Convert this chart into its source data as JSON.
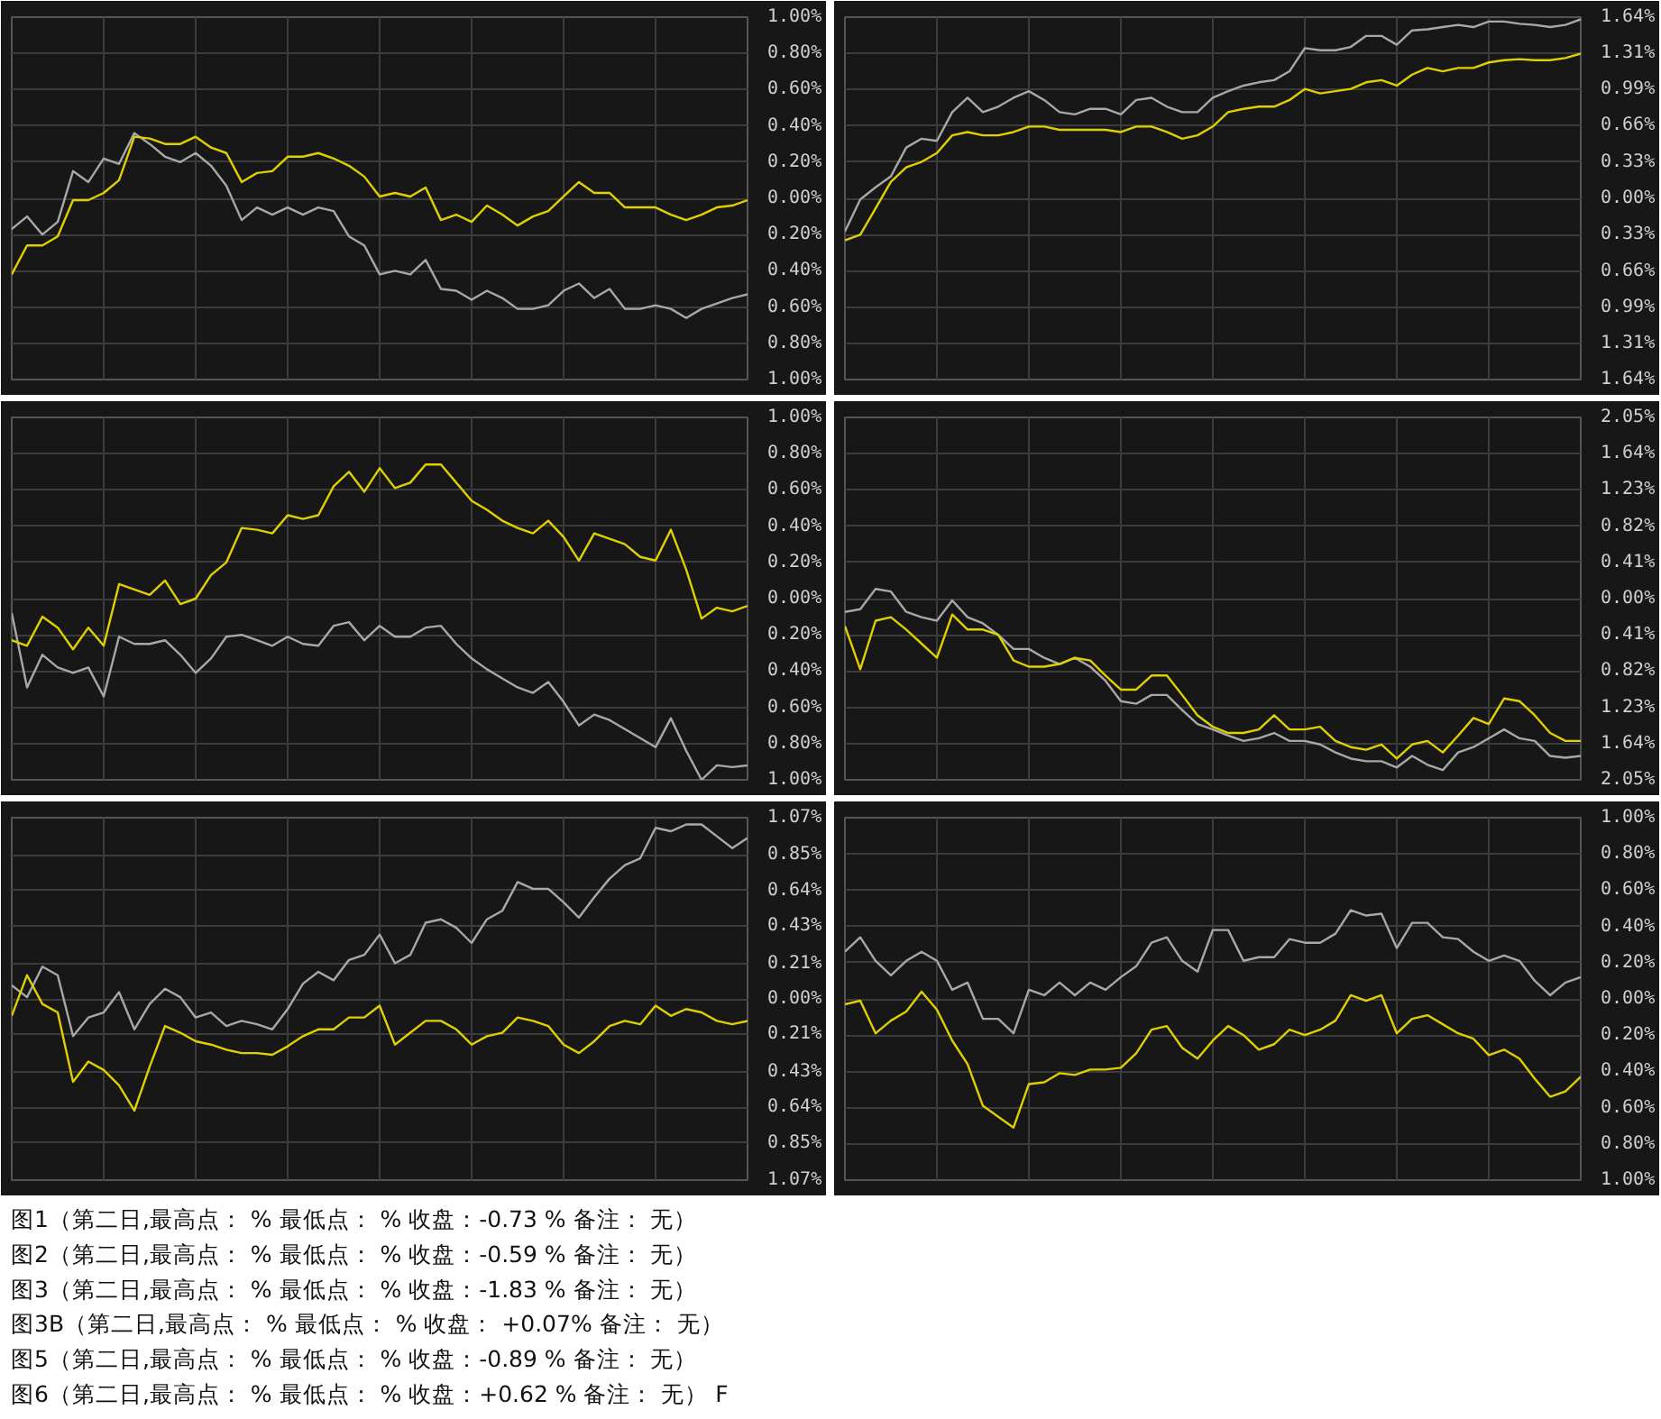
{
  "chart_data": [
    {
      "type": "line",
      "tick_labels": "y",
      "grid": true,
      "ylim": [
        -1,
        1
      ],
      "yticks": [
        {
          "value": 1,
          "label": "1.00%"
        },
        {
          "value": 0.8,
          "label": "0.80%"
        },
        {
          "value": 0.6,
          "label": "0.60%"
        },
        {
          "value": 0.4,
          "label": "0.40%"
        },
        {
          "value": 0.2,
          "label": "0.20%"
        },
        {
          "value": 0,
          "label": "0.00%"
        },
        {
          "value": -0.2,
          "label": "0.20%"
        },
        {
          "value": -0.4,
          "label": "0.40%"
        },
        {
          "value": -0.6,
          "label": "0.60%"
        },
        {
          "value": -0.8,
          "label": "0.80%"
        },
        {
          "value": -1,
          "label": "1.00%"
        }
      ],
      "categories": [
        null,
        null,
        null,
        null,
        null,
        null,
        null,
        null,
        null,
        null,
        null,
        null,
        null,
        null,
        null,
        null,
        null,
        null,
        null,
        null,
        null,
        null,
        null,
        null,
        null,
        null,
        null,
        null,
        null,
        null,
        null,
        null,
        null,
        null,
        null,
        null,
        null,
        null,
        null,
        null,
        null,
        null,
        null,
        null,
        null,
        null,
        null,
        null,
        null
      ],
      "series": [
        {
          "color": "#a8a8a8",
          "values": [
            -0.17,
            -0.1,
            -0.2,
            -0.13,
            0.15,
            0.09,
            0.22,
            0.19,
            0.36,
            0.3,
            0.23,
            0.2,
            0.25,
            0.18,
            0.07,
            -0.12,
            -0.05,
            -0.09,
            -0.05,
            -0.09,
            -0.05,
            -0.07,
            -0.21,
            -0.26,
            -0.42,
            -0.4,
            -0.42,
            -0.34,
            -0.5,
            -0.51,
            -0.56,
            -0.51,
            -0.55,
            -0.61,
            -0.61,
            -0.59,
            -0.51,
            -0.47,
            -0.55,
            -0.5,
            -0.61,
            -0.61,
            -0.59,
            -0.61,
            -0.66,
            -0.61,
            -0.58,
            -0.55,
            -0.53
          ]
        },
        {
          "color": "#e0d000",
          "values": [
            -0.42,
            -0.26,
            -0.26,
            -0.21,
            -0.01,
            -0.01,
            0.03,
            0.1,
            0.34,
            0.33,
            0.3,
            0.3,
            0.34,
            0.28,
            0.25,
            0.09,
            0.14,
            0.15,
            0.23,
            0.23,
            0.25,
            0.22,
            0.18,
            0.12,
            0.01,
            0.03,
            0.01,
            0.06,
            -0.12,
            -0.09,
            -0.13,
            -0.04,
            -0.09,
            -0.15,
            -0.1,
            -0.07,
            0.01,
            0.09,
            0.03,
            0.03,
            -0.05,
            -0.05,
            -0.05,
            -0.09,
            -0.12,
            -0.09,
            -0.05,
            -0.04,
            -0.01
          ]
        }
      ]
    },
    {
      "type": "line",
      "tick_labels": "y",
      "grid": true,
      "ylim": [
        -1.64,
        1.64
      ],
      "yticks": [
        {
          "value": 1.64,
          "label": "1.64%"
        },
        {
          "value": 1.31,
          "label": "1.31%"
        },
        {
          "value": 0.99,
          "label": "0.99%"
        },
        {
          "value": 0.66,
          "label": "0.66%"
        },
        {
          "value": 0.33,
          "label": "0.33%"
        },
        {
          "value": 0,
          "label": "0.00%"
        },
        {
          "value": -0.33,
          "label": "0.33%"
        },
        {
          "value": -0.66,
          "label": "0.66%"
        },
        {
          "value": -0.99,
          "label": "0.99%"
        },
        {
          "value": -1.31,
          "label": "1.31%"
        },
        {
          "value": -1.64,
          "label": "1.64%"
        }
      ],
      "categories": [
        null,
        null,
        null,
        null,
        null,
        null,
        null,
        null,
        null,
        null,
        null,
        null,
        null,
        null,
        null,
        null,
        null,
        null,
        null,
        null,
        null,
        null,
        null,
        null,
        null,
        null,
        null,
        null,
        null,
        null,
        null,
        null,
        null,
        null,
        null,
        null,
        null,
        null,
        null,
        null,
        null,
        null,
        null,
        null,
        null,
        null,
        null,
        null,
        null
      ],
      "series": [
        {
          "color": "#a8a8a8",
          "values": [
            -0.3,
            -0.01,
            0.1,
            0.2,
            0.46,
            0.54,
            0.52,
            0.78,
            0.91,
            0.78,
            0.83,
            0.91,
            0.97,
            0.89,
            0.78,
            0.76,
            0.81,
            0.81,
            0.76,
            0.89,
            0.91,
            0.83,
            0.78,
            0.78,
            0.91,
            0.97,
            1.02,
            1.05,
            1.07,
            1.15,
            1.36,
            1.34,
            1.34,
            1.37,
            1.47,
            1.47,
            1.39,
            1.52,
            1.53,
            1.55,
            1.57,
            1.55,
            1.6,
            1.6,
            1.58,
            1.57,
            1.55,
            1.57,
            1.62
          ]
        },
        {
          "color": "#e0d000",
          "values": [
            -0.38,
            -0.33,
            -0.09,
            0.15,
            0.28,
            0.33,
            0.41,
            0.57,
            0.6,
            0.57,
            0.57,
            0.6,
            0.65,
            0.65,
            0.62,
            0.62,
            0.62,
            0.62,
            0.6,
            0.65,
            0.65,
            0.6,
            0.54,
            0.57,
            0.65,
            0.78,
            0.81,
            0.83,
            0.83,
            0.89,
            0.99,
            0.95,
            0.97,
            0.99,
            1.05,
            1.07,
            1.02,
            1.12,
            1.18,
            1.15,
            1.18,
            1.18,
            1.23,
            1.25,
            1.26,
            1.25,
            1.25,
            1.27,
            1.31
          ]
        }
      ]
    },
    {
      "type": "line",
      "tick_labels": "y",
      "grid": true,
      "ylim": [
        -1,
        1
      ],
      "yticks": [
        {
          "value": 1,
          "label": "1.00%"
        },
        {
          "value": 0.8,
          "label": "0.80%"
        },
        {
          "value": 0.6,
          "label": "0.60%"
        },
        {
          "value": 0.4,
          "label": "0.40%"
        },
        {
          "value": 0.2,
          "label": "0.20%"
        },
        {
          "value": 0,
          "label": "0.00%"
        },
        {
          "value": -0.2,
          "label": "0.20%"
        },
        {
          "value": -0.4,
          "label": "0.40%"
        },
        {
          "value": -0.6,
          "label": "0.60%"
        },
        {
          "value": -0.8,
          "label": "0.80%"
        },
        {
          "value": -1,
          "label": "1.00%"
        }
      ],
      "categories": [
        null,
        null,
        null,
        null,
        null,
        null,
        null,
        null,
        null,
        null,
        null,
        null,
        null,
        null,
        null,
        null,
        null,
        null,
        null,
        null,
        null,
        null,
        null,
        null,
        null,
        null,
        null,
        null,
        null,
        null,
        null,
        null,
        null,
        null,
        null,
        null,
        null,
        null,
        null,
        null,
        null,
        null,
        null,
        null,
        null,
        null,
        null,
        null,
        null
      ],
      "series": [
        {
          "color": "#a8a8a8",
          "values": [
            -0.08,
            -0.49,
            -0.31,
            -0.38,
            -0.41,
            -0.38,
            -0.54,
            -0.21,
            -0.25,
            -0.25,
            -0.23,
            -0.31,
            -0.41,
            -0.33,
            -0.21,
            -0.2,
            -0.23,
            -0.26,
            -0.21,
            -0.25,
            -0.26,
            -0.15,
            -0.13,
            -0.23,
            -0.15,
            -0.21,
            -0.21,
            -0.16,
            -0.15,
            -0.25,
            -0.33,
            -0.39,
            -0.44,
            -0.49,
            -0.52,
            -0.46,
            -0.57,
            -0.7,
            -0.64,
            -0.67,
            -0.72,
            -0.77,
            -0.82,
            -0.66,
            -0.84,
            -1.0,
            -0.92,
            -0.93,
            -0.92
          ]
        },
        {
          "color": "#e0d000",
          "values": [
            -0.23,
            -0.26,
            -0.1,
            -0.16,
            -0.28,
            -0.16,
            -0.26,
            0.08,
            0.05,
            0.02,
            0.1,
            -0.03,
            0.0,
            0.13,
            0.2,
            0.39,
            0.38,
            0.36,
            0.46,
            0.44,
            0.46,
            0.62,
            0.7,
            0.59,
            0.72,
            0.61,
            0.64,
            0.74,
            0.74,
            0.64,
            0.54,
            0.49,
            0.43,
            0.39,
            0.36,
            0.43,
            0.34,
            0.21,
            0.36,
            0.33,
            0.3,
            0.23,
            0.21,
            0.38,
            0.16,
            -0.11,
            -0.05,
            -0.07,
            -0.04
          ]
        }
      ]
    },
    {
      "type": "line",
      "tick_labels": "y",
      "grid": true,
      "ylim": [
        -2.05,
        2.05
      ],
      "yticks": [
        {
          "value": 2.05,
          "label": "2.05%"
        },
        {
          "value": 1.64,
          "label": "1.64%"
        },
        {
          "value": 1.23,
          "label": "1.23%"
        },
        {
          "value": 0.82,
          "label": "0.82%"
        },
        {
          "value": 0.41,
          "label": "0.41%"
        },
        {
          "value": 0,
          "label": "0.00%"
        },
        {
          "value": -0.41,
          "label": "0.41%"
        },
        {
          "value": -0.82,
          "label": "0.82%"
        },
        {
          "value": -1.23,
          "label": "1.23%"
        },
        {
          "value": -1.64,
          "label": "1.64%"
        },
        {
          "value": -2.05,
          "label": "2.05%"
        }
      ],
      "categories": [
        null,
        null,
        null,
        null,
        null,
        null,
        null,
        null,
        null,
        null,
        null,
        null,
        null,
        null,
        null,
        null,
        null,
        null,
        null,
        null,
        null,
        null,
        null,
        null,
        null,
        null,
        null,
        null,
        null,
        null,
        null,
        null,
        null,
        null,
        null,
        null,
        null,
        null,
        null,
        null,
        null,
        null,
        null,
        null,
        null,
        null,
        null,
        null,
        null
      ],
      "series": [
        {
          "color": "#a8a8a8",
          "values": [
            -0.15,
            -0.12,
            0.11,
            0.08,
            -0.15,
            -0.21,
            -0.25,
            -0.02,
            -0.21,
            -0.28,
            -0.41,
            -0.57,
            -0.57,
            -0.67,
            -0.74,
            -0.67,
            -0.77,
            -0.93,
            -1.16,
            -1.19,
            -1.09,
            -1.09,
            -1.26,
            -1.42,
            -1.48,
            -1.55,
            -1.61,
            -1.58,
            -1.52,
            -1.61,
            -1.61,
            -1.65,
            -1.74,
            -1.81,
            -1.84,
            -1.84,
            -1.91,
            -1.78,
            -1.88,
            -1.94,
            -1.74,
            -1.68,
            -1.58,
            -1.48,
            -1.58,
            -1.61,
            -1.78,
            -1.8,
            -1.78
          ]
        },
        {
          "color": "#e0d000",
          "values": [
            -0.31,
            -0.8,
            -0.25,
            -0.21,
            -0.35,
            -0.51,
            -0.67,
            -0.18,
            -0.35,
            -0.35,
            -0.41,
            -0.7,
            -0.77,
            -0.77,
            -0.74,
            -0.67,
            -0.7,
            -0.87,
            -1.03,
            -1.03,
            -0.87,
            -0.87,
            -1.09,
            -1.32,
            -1.45,
            -1.52,
            -1.52,
            -1.48,
            -1.32,
            -1.48,
            -1.48,
            -1.45,
            -1.61,
            -1.68,
            -1.71,
            -1.65,
            -1.81,
            -1.65,
            -1.61,
            -1.74,
            -1.55,
            -1.35,
            -1.42,
            -1.13,
            -1.16,
            -1.32,
            -1.52,
            -1.61,
            -1.61
          ]
        }
      ]
    },
    {
      "type": "line",
      "tick_labels": "y",
      "grid": true,
      "ylim": [
        -1.07,
        1.07
      ],
      "yticks": [
        {
          "value": 1.07,
          "label": "1.07%"
        },
        {
          "value": 0.85,
          "label": "0.85%"
        },
        {
          "value": 0.64,
          "label": "0.64%"
        },
        {
          "value": 0.43,
          "label": "0.43%"
        },
        {
          "value": 0.21,
          "label": "0.21%"
        },
        {
          "value": 0,
          "label": "0.00%"
        },
        {
          "value": -0.21,
          "label": "0.21%"
        },
        {
          "value": -0.43,
          "label": "0.43%"
        },
        {
          "value": -0.64,
          "label": "0.64%"
        },
        {
          "value": -0.85,
          "label": "0.85%"
        },
        {
          "value": -1.07,
          "label": "1.07%"
        }
      ],
      "categories": [
        null,
        null,
        null,
        null,
        null,
        null,
        null,
        null,
        null,
        null,
        null,
        null,
        null,
        null,
        null,
        null,
        null,
        null,
        null,
        null,
        null,
        null,
        null,
        null,
        null,
        null,
        null,
        null,
        null,
        null,
        null,
        null,
        null,
        null,
        null,
        null,
        null,
        null,
        null,
        null,
        null,
        null,
        null,
        null,
        null,
        null,
        null,
        null,
        null
      ],
      "series": [
        {
          "color": "#a8a8a8",
          "values": [
            0.08,
            0.01,
            0.19,
            0.14,
            -0.22,
            -0.11,
            -0.08,
            0.04,
            -0.18,
            -0.03,
            0.06,
            0.01,
            -0.11,
            -0.08,
            -0.16,
            -0.13,
            -0.15,
            -0.18,
            -0.06,
            0.09,
            0.16,
            0.11,
            0.23,
            0.26,
            0.38,
            0.21,
            0.26,
            0.45,
            0.47,
            0.42,
            0.33,
            0.47,
            0.52,
            0.69,
            0.65,
            0.65,
            0.57,
            0.48,
            0.6,
            0.71,
            0.79,
            0.83,
            1.01,
            0.99,
            1.03,
            1.03,
            0.96,
            0.89,
            0.95
          ]
        },
        {
          "color": "#e0d000",
          "values": [
            -0.1,
            0.14,
            -0.03,
            -0.08,
            -0.49,
            -0.37,
            -0.42,
            -0.51,
            -0.66,
            -0.4,
            -0.16,
            -0.2,
            -0.25,
            -0.27,
            -0.3,
            -0.32,
            -0.32,
            -0.33,
            -0.28,
            -0.22,
            -0.18,
            -0.18,
            -0.11,
            -0.11,
            -0.04,
            -0.27,
            -0.2,
            -0.13,
            -0.13,
            -0.18,
            -0.27,
            -0.22,
            -0.2,
            -0.11,
            -0.13,
            -0.16,
            -0.27,
            -0.32,
            -0.25,
            -0.16,
            -0.13,
            -0.15,
            -0.04,
            -0.1,
            -0.06,
            -0.08,
            -0.13,
            -0.15,
            -0.13
          ]
        }
      ]
    },
    {
      "type": "line",
      "tick_labels": "y",
      "grid": true,
      "ylim": [
        -1,
        1
      ],
      "yticks": [
        {
          "value": 1,
          "label": "1.00%"
        },
        {
          "value": 0.8,
          "label": "0.80%"
        },
        {
          "value": 0.6,
          "label": "0.60%"
        },
        {
          "value": 0.4,
          "label": "0.40%"
        },
        {
          "value": 0.2,
          "label": "0.20%"
        },
        {
          "value": 0,
          "label": "0.00%"
        },
        {
          "value": -0.2,
          "label": "0.20%"
        },
        {
          "value": -0.4,
          "label": "0.40%"
        },
        {
          "value": -0.6,
          "label": "0.60%"
        },
        {
          "value": -0.8,
          "label": "0.80%"
        },
        {
          "value": -1,
          "label": "1.00%"
        }
      ],
      "categories": [
        null,
        null,
        null,
        null,
        null,
        null,
        null,
        null,
        null,
        null,
        null,
        null,
        null,
        null,
        null,
        null,
        null,
        null,
        null,
        null,
        null,
        null,
        null,
        null,
        null,
        null,
        null,
        null,
        null,
        null,
        null,
        null,
        null,
        null,
        null,
        null,
        null,
        null,
        null,
        null,
        null,
        null,
        null,
        null,
        null,
        null,
        null,
        null,
        null
      ],
      "series": [
        {
          "color": "#a8a8a8",
          "values": [
            0.26,
            0.34,
            0.21,
            0.13,
            0.21,
            0.26,
            0.21,
            0.05,
            0.09,
            -0.11,
            -0.11,
            -0.19,
            0.05,
            0.02,
            0.09,
            0.02,
            0.09,
            0.05,
            0.12,
            0.18,
            0.31,
            0.34,
            0.21,
            0.15,
            0.38,
            0.38,
            0.21,
            0.23,
            0.23,
            0.33,
            0.31,
            0.31,
            0.36,
            0.49,
            0.46,
            0.47,
            0.28,
            0.42,
            0.42,
            0.34,
            0.33,
            0.26,
            0.21,
            0.24,
            0.21,
            0.1,
            0.02,
            0.09,
            0.12
          ]
        },
        {
          "color": "#e0d000",
          "values": [
            -0.03,
            -0.01,
            -0.19,
            -0.12,
            -0.07,
            0.04,
            -0.06,
            -0.23,
            -0.36,
            -0.59,
            -0.65,
            -0.71,
            -0.47,
            -0.46,
            -0.41,
            -0.42,
            -0.39,
            -0.39,
            -0.38,
            -0.3,
            -0.17,
            -0.15,
            -0.27,
            -0.33,
            -0.23,
            -0.15,
            -0.2,
            -0.28,
            -0.25,
            -0.17,
            -0.2,
            -0.17,
            -0.12,
            0.02,
            -0.01,
            0.02,
            -0.19,
            -0.11,
            -0.09,
            -0.14,
            -0.19,
            -0.22,
            -0.31,
            -0.28,
            -0.33,
            -0.44,
            -0.54,
            -0.51,
            -0.43
          ]
        }
      ]
    },
    {
      "type": "other",
      "annotations": [
        "图1（第二日,最高点： %   最低点： %   收盘：-0.73 %   备注： 无）",
        "图2（第二日,最高点： %   最低点： %   收盘：-0.59 %   备注： 无）",
        "图3（第二日,最高点： %   最低点： %   收盘：-1.83 %   备注： 无）",
        "图3B（第二日,最高点： %   最低点： %   收盘： +0.07%   备注： 无）",
        "图5（第二日,最高点： %   最低点： %   收盘：-0.89 %   备注： 无）",
        "图6（第二日,最高点： %   最低点： %   收盘：+0.62 %   备注： 无）  F"
      ]
    }
  ]
}
